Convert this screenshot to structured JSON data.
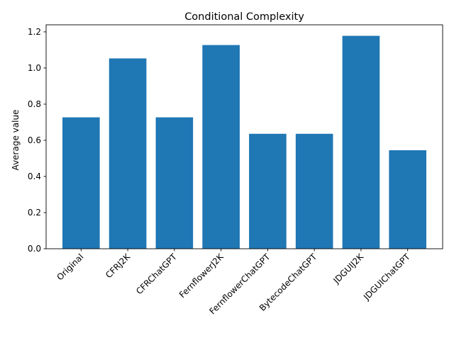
{
  "chart_data": {
    "type": "bar",
    "title": "Conditional Complexity",
    "xlabel": "",
    "ylabel": "Average value",
    "categories": [
      "Original",
      "CFRJ2K",
      "CFRChatGPT",
      "FernflowerJ2K",
      "FernflowerChatGPT",
      "BytecodeChatGPT",
      "JDGUIJ2K",
      "JDGUIChatGPT"
    ],
    "values": [
      0.727,
      1.053,
      0.727,
      1.127,
      0.636,
      0.636,
      1.178,
      0.545
    ],
    "ylim": [
      0,
      1.239
    ],
    "yticks": [
      0.0,
      0.2,
      0.4,
      0.6,
      0.8,
      1.0,
      1.2
    ],
    "ytick_labels": [
      "0.0",
      "0.2",
      "0.4",
      "0.6",
      "0.8",
      "1.0",
      "1.2"
    ],
    "bar_color": "#1f77b4",
    "grid": false,
    "legend": "none"
  }
}
